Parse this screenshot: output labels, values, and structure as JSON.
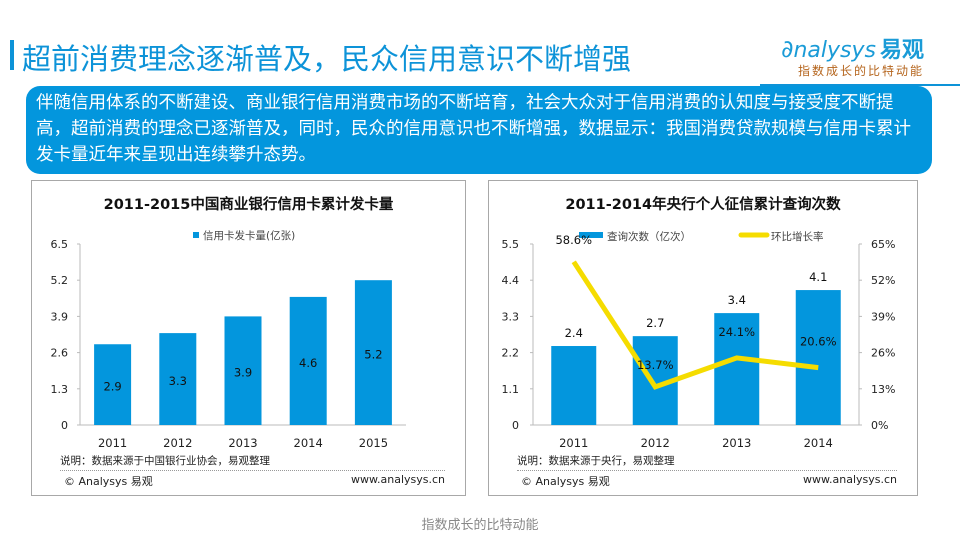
{
  "header": {
    "title": "超前消费理念逐渐普及，民众信用意识不断增强",
    "logo_text": "nalysys",
    "logo_cn": "易观",
    "logo_slogan": "指数成长的比特动能"
  },
  "summary": {
    "text": "伴随信用体系的不断建设、商业银行信用消费市场的不断培育，社会大众对于信用消费的认知度与接受度不断提高，超前消费的理念已逐渐普及，同时，民众的信用意识也不断增强，数据显示：我国消费贷款规模与信用卡累计发卡量近年来呈现出连续攀升态势。"
  },
  "colors": {
    "accent": "#0d93d8",
    "bar": "#0396dd",
    "line": "#f5dc00",
    "summary_bg": "#0396dd"
  },
  "chart_data": [
    {
      "type": "bar",
      "title": "2011-2015中国商业银行信用卡累计发卡量",
      "categories": [
        "2011",
        "2012",
        "2013",
        "2014",
        "2015"
      ],
      "series": [
        {
          "name": "信用卡发卡量(亿张)",
          "values": [
            2.9,
            3.3,
            3.9,
            4.6,
            5.2
          ]
        }
      ],
      "data_labels": [
        "2.9",
        "3.3",
        "3.9",
        "4.6",
        "5.2"
      ],
      "yticks": [
        "0",
        "1.3",
        "2.6",
        "3.9",
        "5.2",
        "6.5"
      ],
      "ylim": [
        0,
        6.5
      ],
      "xlabel": "",
      "ylabel": "",
      "legend": "top",
      "note": "说明：数据来源于中国银行业协会，易观整理",
      "copyright": "© Analysys 易观",
      "url": "www.analysys.cn"
    },
    {
      "type": "bar+line",
      "title": "2011-2014年央行个人征信累计查询次数",
      "categories": [
        "2011",
        "2012",
        "2013",
        "2014"
      ],
      "series": [
        {
          "name": "查询次数（亿次）",
          "type": "bar",
          "axis": "left",
          "values": [
            2.4,
            2.7,
            3.4,
            4.1
          ],
          "labels": [
            "2.4",
            "2.7",
            "3.4",
            "4.1"
          ]
        },
        {
          "name": "环比增长率",
          "type": "line",
          "axis": "right",
          "values": [
            58.6,
            13.7,
            24.1,
            20.6
          ],
          "labels": [
            "58.6%",
            "13.7%",
            "24.1%",
            "20.6%"
          ]
        }
      ],
      "yticks_left": [
        "0",
        "1.1",
        "2.2",
        "3.3",
        "4.4",
        "5.5"
      ],
      "yticks_right": [
        "0%",
        "13%",
        "26%",
        "39%",
        "52%",
        "65%"
      ],
      "ylim_left": [
        0,
        5.5
      ],
      "ylim_right": [
        0,
        65
      ],
      "legend": "top",
      "note": "说明：数据来源于央行，易观整理",
      "copyright": "© Analysys 易观",
      "url": "www.analysys.cn"
    }
  ],
  "footer": {
    "text": "指数成长的比特动能"
  }
}
